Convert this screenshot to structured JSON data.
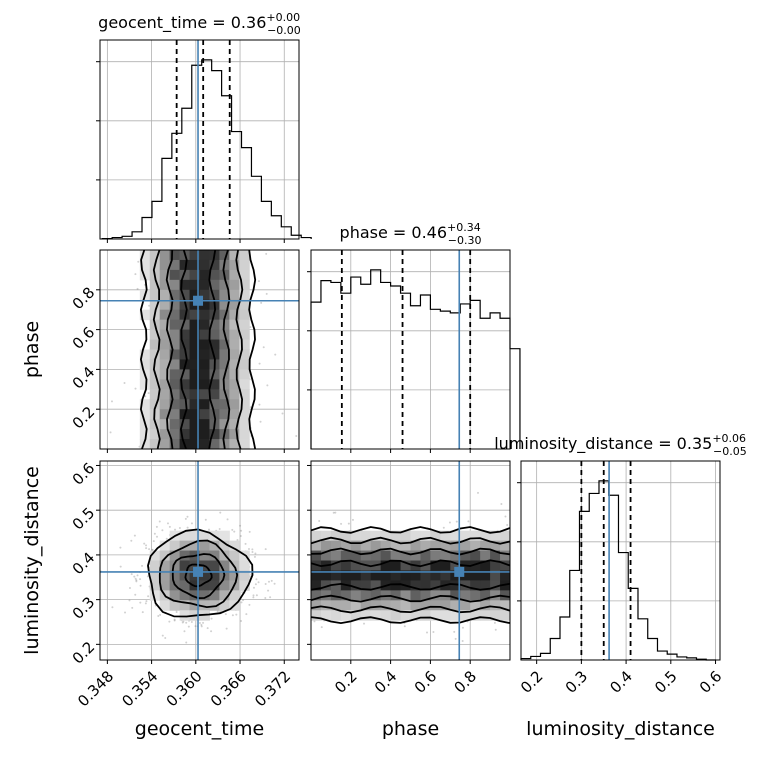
{
  "chart_data": {
    "type": "corner",
    "parameters": [
      "geocent_time",
      "phase",
      "luminosity_distance"
    ],
    "titles": [
      {
        "param": "geocent_time",
        "median": "0.36",
        "plus": "+0.00",
        "minus": "−0.00",
        "prefix": "geocent_time = "
      },
      {
        "param": "phase",
        "median": "0.46",
        "plus": "+0.34",
        "minus": "−0.30",
        "prefix": "phase = "
      },
      {
        "param": "luminosity_distance",
        "median": "0.35",
        "plus": "+0.06",
        "minus": "−0.05",
        "prefix": "luminosity_distance = "
      }
    ],
    "ranges": {
      "geocent_time": [
        0.347,
        0.374
      ],
      "phase": [
        0.0,
        1.0
      ],
      "luminosity_distance": [
        0.165,
        0.61
      ]
    },
    "ticks": {
      "geocent_time": [
        "0.348",
        "0.354",
        "0.360",
        "0.366",
        "0.372"
      ],
      "phase": [
        "0.2",
        "0.4",
        "0.6",
        "0.8"
      ],
      "luminosity_distance": [
        "0.2",
        "0.3",
        "0.4",
        "0.5",
        "0.6"
      ]
    },
    "truths": {
      "geocent_time": 0.3603,
      "phase": 0.745,
      "luminosity_distance": 0.362
    },
    "quantiles": {
      "geocent_time": [
        0.3574,
        0.361,
        0.3646
      ],
      "phase": [
        0.155,
        0.46,
        0.8
      ],
      "luminosity_distance": [
        0.3,
        0.35,
        0.41
      ]
    },
    "hist_1d": {
      "geocent_time": {
        "edges_start": 0.3473,
        "bin_width": 0.00135,
        "counts": [
          0.002,
          0.008,
          0.015,
          0.04,
          0.12,
          0.21,
          0.45,
          0.59,
          0.73,
          0.97,
          1.0,
          0.94,
          0.8,
          0.6,
          0.51,
          0.35,
          0.21,
          0.13,
          0.068,
          0.021,
          0.008
        ]
      },
      "phase": {
        "edges_start": 0.0,
        "bin_width": 0.05,
        "counts": [
          0.82,
          0.94,
          0.93,
          0.87,
          0.96,
          0.92,
          1.0,
          0.93,
          0.91,
          0.87,
          0.8,
          0.86,
          0.78,
          0.77,
          0.76,
          0.81,
          0.83,
          0.73,
          0.76,
          0.73,
          0.56
        ]
      },
      "luminosity_distance": {
        "edges_start": 0.165,
        "bin_width": 0.0218,
        "counts": [
          0.008,
          0.02,
          0.037,
          0.12,
          0.24,
          0.5,
          0.83,
          0.93,
          1.0,
          0.92,
          0.6,
          0.4,
          0.23,
          0.12,
          0.05,
          0.033,
          0.017,
          0.012,
          0.004,
          0.0
        ]
      }
    },
    "xlabels": [
      "geocent_time",
      "phase",
      "luminosity_distance"
    ],
    "ylabels": [
      "",
      "phase",
      "luminosity_distance"
    ]
  }
}
